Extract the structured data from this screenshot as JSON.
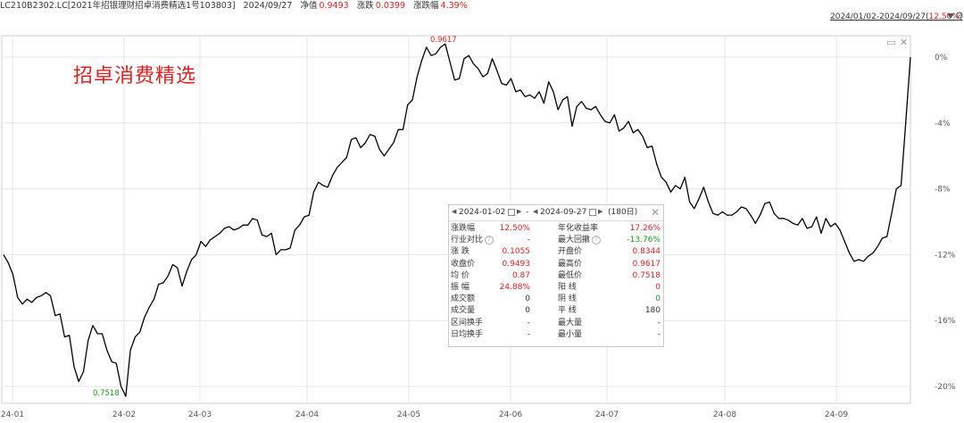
{
  "header": {
    "code": "LC210B2302.LC[2021年招银理财招卓消费精选1号103803]",
    "date": "2024/09/27",
    "nav_label": "净值",
    "nav_value": "0.9493",
    "change_label": "涨跌",
    "change_value": "0.0399",
    "pct_label": "涨跌幅",
    "pct_value": "4.39%"
  },
  "range": {
    "text": "2024/01/02-2024/09/27(",
    "pct": "12.50%",
    "close": ")"
  },
  "colors": {
    "line": "#000000",
    "up": "#e02020",
    "down": "#1a9a1a",
    "grid": "#e6e6e6"
  },
  "chart_data": {
    "type": "line",
    "title": "招卓消费精选",
    "x_ticks": [
      "24-01",
      "24-02",
      "24-03",
      "24-04",
      "24-05",
      "24-06",
      "24-07",
      "24-08",
      "24-09"
    ],
    "y_ticks": [
      "0%",
      "-4%",
      "-8%",
      "-12%",
      "-16%",
      "-20%"
    ],
    "ylim": [
      -20.6,
      0.8
    ],
    "y_unit": "%",
    "annotations": {
      "max": "0.9617",
      "min": "0.7518"
    },
    "series": [
      {
        "name": "",
        "y": [
          -12.0,
          -12.5,
          -13.2,
          -14.6,
          -15.0,
          -14.7,
          -14.9,
          -14.6,
          -14.5,
          -14.3,
          -14.5,
          -15.7,
          -15.6,
          -17.0,
          -16.9,
          -18.8,
          -19.7,
          -19.1,
          -17.2,
          -16.3,
          -16.8,
          -16.8,
          -17.8,
          -18.5,
          -18.6,
          -20.0,
          -20.6,
          -17.8,
          -17.0,
          -16.7,
          -15.8,
          -15.2,
          -14.7,
          -13.8,
          -13.7,
          -13.3,
          -12.6,
          -12.8,
          -13.9,
          -13.0,
          -12.3,
          -12.0,
          -11.2,
          -11.5,
          -11.1,
          -10.9,
          -10.7,
          -10.4,
          -10.3,
          -10.5,
          -10.4,
          -10.2,
          -10.2,
          -9.8,
          -9.9,
          -10.8,
          -10.9,
          -10.7,
          -12.0,
          -11.7,
          -11.7,
          -11.6,
          -10.5,
          -10.2,
          -9.7,
          -9.6,
          -8.2,
          -7.6,
          -7.8,
          -7.9,
          -7.2,
          -6.7,
          -6.4,
          -6.1,
          -5.0,
          -4.9,
          -5.5,
          -5.2,
          -4.7,
          -4.8,
          -5.6,
          -6.0,
          -5.6,
          -5.2,
          -4.4,
          -4.4,
          -2.9,
          -2.6,
          -1.2,
          -0.2,
          0.6,
          0.1,
          0.2,
          0.6,
          0.8,
          -0.3,
          -1.4,
          -1.3,
          -0.1,
          0.1,
          -0.4,
          -0.7,
          -1.2,
          -1.0,
          -0.1,
          -0.8,
          -1.6,
          -1.7,
          -1.3,
          -2.1,
          -2.0,
          -2.4,
          -2.3,
          -2.5,
          -2.1,
          -2.8,
          -1.5,
          -2.1,
          -3.2,
          -2.6,
          -2.4,
          -4.2,
          -3.0,
          -2.7,
          -3.1,
          -3.2,
          -3.0,
          -3.5,
          -3.9,
          -4.0,
          -3.5,
          -4.5,
          -4.3,
          -3.9,
          -4.6,
          -4.4,
          -4.8,
          -5.5,
          -5.4,
          -6.5,
          -7.3,
          -7.6,
          -8.2,
          -7.8,
          -8.0,
          -7.3,
          -8.8,
          -9.2,
          -8.6,
          -7.9,
          -8.8,
          -9.5,
          -9.6,
          -9.4,
          -9.6,
          -9.6,
          -9.4,
          -9.1,
          -9.2,
          -9.6,
          -10.1,
          -9.6,
          -8.9,
          -8.8,
          -9.5,
          -9.8,
          -9.8,
          -9.9,
          -10.1,
          -10.2,
          -9.8,
          -10.4,
          -10.3,
          -9.7,
          -10.7,
          -9.8,
          -10.3,
          -10.1,
          -10.5,
          -11.2,
          -11.9,
          -12.4,
          -12.3,
          -12.4,
          -12.1,
          -11.9,
          -11.5,
          -11.0,
          -10.9,
          -9.5,
          -8.0,
          -7.8,
          -4.0,
          0.0
        ]
      }
    ]
  },
  "stats": {
    "start_date": "2024-01-02",
    "sep": "-",
    "end_date": "2024-09-27",
    "days": "(180日)",
    "rows": [
      {
        "l1": "涨跌幅",
        "v1": "12.50%",
        "c1": "red",
        "l2": "年化收益率",
        "v2": "17.26%",
        "c2": "red"
      },
      {
        "l1": "行业对比",
        "v1": "-",
        "c1": "",
        "l2": "最大回撤",
        "v2": "-13.76%",
        "c2": "green"
      },
      {
        "l1": "涨 跌",
        "v1": "0.1055",
        "c1": "red",
        "l2": "开盘价",
        "v2": "0.8344",
        "c2": "red"
      },
      {
        "l1": "收盘价",
        "v1": "0.9493",
        "c1": "red",
        "l2": "最高价",
        "v2": "0.9617",
        "c2": "red"
      },
      {
        "l1": "均 价",
        "v1": "0.87",
        "c1": "red",
        "l2": "最低价",
        "v2": "0.7518",
        "c2": "red"
      },
      {
        "l1": "振 幅",
        "v1": "24.88%",
        "c1": "red",
        "l2": "阳 线",
        "v2": "0",
        "c2": "red"
      },
      {
        "l1": "成交额",
        "v1": "0",
        "c1": "",
        "l2": "阴 线",
        "v2": "0",
        "c2": "green"
      },
      {
        "l1": "成交量",
        "v1": "0",
        "c1": "",
        "l2": "平 线",
        "v2": "180",
        "c2": ""
      },
      {
        "l1": "区间换手",
        "v1": "-",
        "c1": "",
        "l2": "最大量",
        "v2": "-",
        "c2": ""
      },
      {
        "l1": "日均换手",
        "v1": "-",
        "c1": "",
        "l2": "最小量",
        "v2": "-",
        "c2": ""
      }
    ]
  }
}
